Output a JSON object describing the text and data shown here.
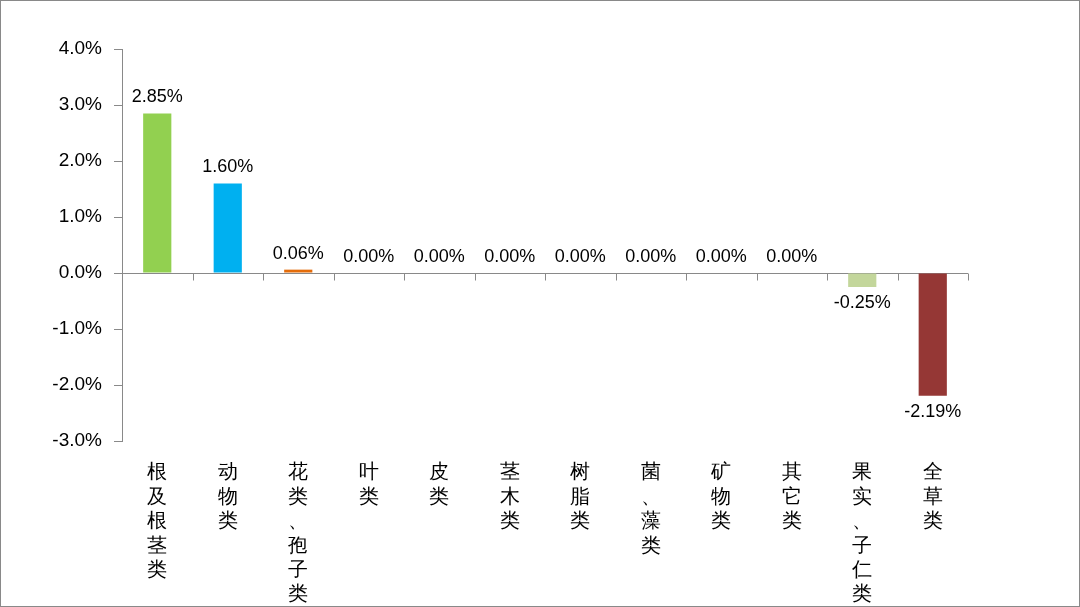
{
  "chart_data": {
    "type": "bar",
    "categories": [
      "根及根茎类",
      "动物类",
      "花类、孢子类",
      "叶类",
      "皮类",
      "茎木类",
      "树脂类",
      "菌、藻类",
      "矿物类",
      "其它类",
      "果实、子仁类",
      "全草类"
    ],
    "values": [
      2.85,
      1.6,
      0.06,
      0,
      0,
      0,
      0,
      0,
      0,
      0,
      -0.25,
      -2.19
    ],
    "colors": [
      "#92d050",
      "#00b0f0",
      "#e46c0a",
      "#4f81bd",
      "#4f81bd",
      "#4f81bd",
      "#4f81bd",
      "#4f81bd",
      "#4f81bd",
      "#4f81bd",
      "#c3d69b",
      "#953735"
    ],
    "value_labels": [
      "2.85%",
      "1.60%",
      "0.06%",
      "0.00%",
      "0.00%",
      "0.00%",
      "0.00%",
      "0.00%",
      "0.00%",
      "0.00%",
      "-0.25%",
      "-2.19%"
    ],
    "ylim": [
      -3,
      4
    ],
    "yticks": [
      {
        "value": -3,
        "label": "-3.0%"
      },
      {
        "value": -2,
        "label": "-2.0%"
      },
      {
        "value": -1,
        "label": "-1.0%"
      },
      {
        "value": 0,
        "label": "0.0%"
      },
      {
        "value": 1,
        "label": "1.0%"
      },
      {
        "value": 2,
        "label": "2.0%"
      },
      {
        "value": 3,
        "label": "3.0%"
      },
      {
        "value": 4,
        "label": "4.0%"
      }
    ]
  }
}
